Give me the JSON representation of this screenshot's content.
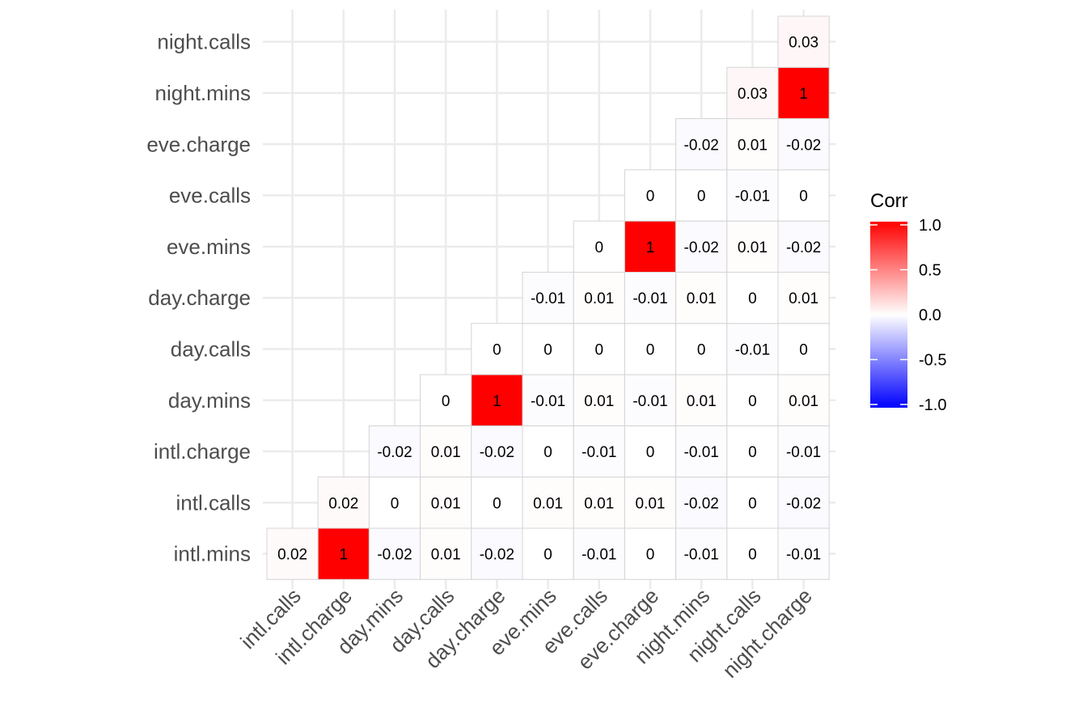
{
  "chart_data": {
    "type": "heatmap",
    "title": "",
    "xlabel": "",
    "ylabel": "",
    "x_categories": [
      "intl.calls",
      "intl.charge",
      "day.mins",
      "day.calls",
      "day.charge",
      "eve.mins",
      "eve.calls",
      "eve.charge",
      "night.mins",
      "night.calls",
      "night.charge"
    ],
    "y_categories": [
      "intl.mins",
      "intl.calls",
      "intl.charge",
      "day.mins",
      "day.calls",
      "day.charge",
      "eve.mins",
      "eve.calls",
      "eve.charge",
      "night.mins",
      "night.calls"
    ],
    "values": [
      [
        0.02,
        1,
        -0.02,
        0.01,
        -0.02,
        0,
        -0.01,
        0,
        -0.01,
        0,
        -0.01
      ],
      [
        null,
        0.02,
        0,
        0.01,
        0,
        0.01,
        0.01,
        0.01,
        -0.02,
        0,
        -0.02
      ],
      [
        null,
        null,
        -0.02,
        0.01,
        -0.02,
        0,
        -0.01,
        0,
        -0.01,
        0,
        -0.01
      ],
      [
        null,
        null,
        null,
        0,
        1,
        -0.01,
        0.01,
        -0.01,
        0.01,
        0,
        0.01
      ],
      [
        null,
        null,
        null,
        null,
        0,
        0,
        0,
        0,
        0,
        -0.01,
        0
      ],
      [
        null,
        null,
        null,
        null,
        null,
        -0.01,
        0.01,
        -0.01,
        0.01,
        0,
        0.01
      ],
      [
        null,
        null,
        null,
        null,
        null,
        null,
        0,
        1,
        -0.02,
        0.01,
        -0.02
      ],
      [
        null,
        null,
        null,
        null,
        null,
        null,
        null,
        0,
        0,
        -0.01,
        0
      ],
      [
        null,
        null,
        null,
        null,
        null,
        null,
        null,
        null,
        -0.02,
        0.01,
        -0.02
      ],
      [
        null,
        null,
        null,
        null,
        null,
        null,
        null,
        null,
        null,
        0.03,
        1
      ],
      [
        null,
        null,
        null,
        null,
        null,
        null,
        null,
        null,
        null,
        null,
        0.03
      ]
    ],
    "legend": {
      "title": "Corr",
      "position": "right",
      "ticks": [
        1.0,
        0.5,
        0.0,
        -0.5,
        -1.0
      ],
      "tick_labels": [
        "1.0",
        "0.5",
        "0.0",
        "-0.5",
        "-1.0"
      ],
      "range": [
        -1,
        1
      ],
      "colors": {
        "low": "#0000FF",
        "mid": "#FFFFFF",
        "high": "#FF0000"
      }
    },
    "grid": true
  }
}
